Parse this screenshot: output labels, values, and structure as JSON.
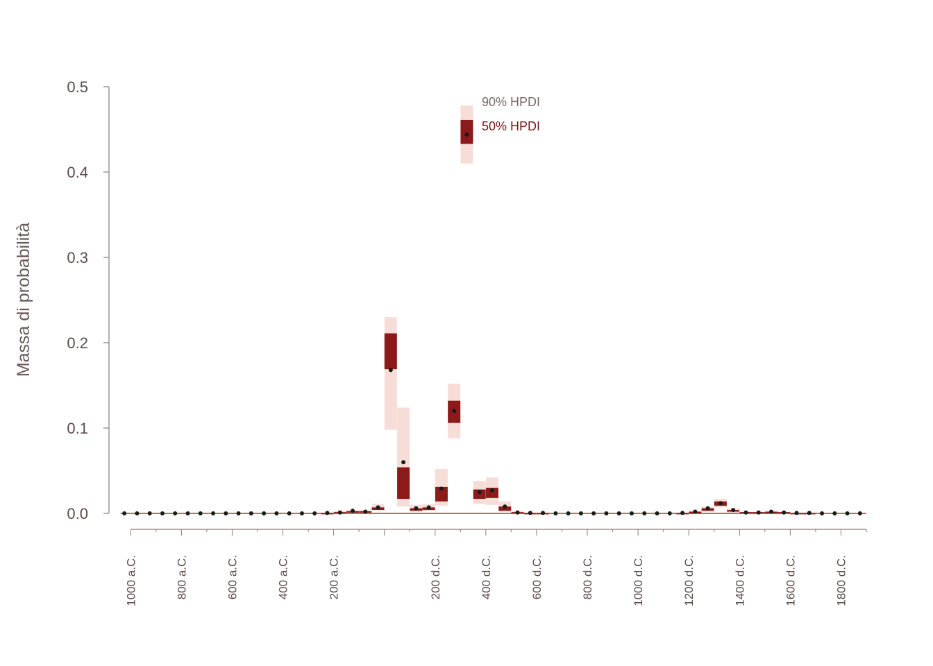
{
  "chart_data": {
    "type": "interval",
    "ylabel": "Massa di probabilità",
    "ylim": [
      0,
      0.5
    ],
    "yticks": [
      "0.0",
      "0.1",
      "0.2",
      "0.3",
      "0.4",
      "0.5"
    ],
    "xlim": [
      -1050,
      1900
    ],
    "xticks": [
      {
        "value": -1000,
        "label": "1000 a.C."
      },
      {
        "value": -800,
        "label": "800 a.C."
      },
      {
        "value": -600,
        "label": "600 a.C."
      },
      {
        "value": -400,
        "label": "400 a.C."
      },
      {
        "value": -200,
        "label": "200 a.C."
      },
      {
        "value": 200,
        "label": "200 d.C."
      },
      {
        "value": 400,
        "label": "400 d.C."
      },
      {
        "value": 600,
        "label": "600 d.C."
      },
      {
        "value": 800,
        "label": "800 d.C."
      },
      {
        "value": 1000,
        "label": "1000 d.C."
      },
      {
        "value": 1200,
        "label": "1200 d.C."
      },
      {
        "value": 1400,
        "label": "1400 d.C."
      },
      {
        "value": 1600,
        "label": "1600 d.C."
      },
      {
        "value": 1800,
        "label": "1800 d.C."
      }
    ],
    "legend": {
      "hpdi90": "90% HPDI",
      "hpdi50": "50% HPDI"
    },
    "colors": {
      "hpdi90": "#f7ddd8",
      "hpdi50": "#8b1a1a",
      "point": "#1a1a1a",
      "axis": "#8a7a78",
      "zero_line": "#8b1a1a"
    },
    "series": [
      {
        "x": -1025,
        "y": 0,
        "lo90": 0,
        "hi90": 0,
        "lo50": 0,
        "hi50": 0
      },
      {
        "x": -975,
        "y": 0,
        "lo90": 0,
        "hi90": 0,
        "lo50": 0,
        "hi50": 0
      },
      {
        "x": -925,
        "y": 0,
        "lo90": 0,
        "hi90": 0,
        "lo50": 0,
        "hi50": 0
      },
      {
        "x": -875,
        "y": 0,
        "lo90": 0,
        "hi90": 0,
        "lo50": 0,
        "hi50": 0
      },
      {
        "x": -825,
        "y": 0,
        "lo90": 0,
        "hi90": 0,
        "lo50": 0,
        "hi50": 0
      },
      {
        "x": -775,
        "y": 0,
        "lo90": 0,
        "hi90": 0,
        "lo50": 0,
        "hi50": 0
      },
      {
        "x": -725,
        "y": 0,
        "lo90": 0,
        "hi90": 0,
        "lo50": 0,
        "hi50": 0
      },
      {
        "x": -675,
        "y": 0,
        "lo90": 0,
        "hi90": 0,
        "lo50": 0,
        "hi50": 0
      },
      {
        "x": -625,
        "y": 0,
        "lo90": 0,
        "hi90": 0,
        "lo50": 0,
        "hi50": 0
      },
      {
        "x": -575,
        "y": 0,
        "lo90": 0,
        "hi90": 0,
        "lo50": 0,
        "hi50": 0
      },
      {
        "x": -525,
        "y": 0,
        "lo90": 0,
        "hi90": 0,
        "lo50": 0,
        "hi50": 0
      },
      {
        "x": -475,
        "y": 0,
        "lo90": 0,
        "hi90": 0,
        "lo50": 0,
        "hi50": 0
      },
      {
        "x": -425,
        "y": 0,
        "lo90": 0,
        "hi90": 0,
        "lo50": 0,
        "hi50": 0
      },
      {
        "x": -375,
        "y": 0,
        "lo90": 0,
        "hi90": 0,
        "lo50": 0,
        "hi50": 0
      },
      {
        "x": -325,
        "y": 0,
        "lo90": 0,
        "hi90": 0,
        "lo50": 0,
        "hi50": 0
      },
      {
        "x": -275,
        "y": 0,
        "lo90": 0,
        "hi90": 0,
        "lo50": 0,
        "hi50": 0
      },
      {
        "x": -225,
        "y": 0.0005,
        "lo90": 0,
        "hi90": 0.001,
        "lo50": 0,
        "hi50": 0.0005
      },
      {
        "x": -175,
        "y": 0.001,
        "lo90": 0,
        "hi90": 0.003,
        "lo50": 0,
        "hi50": 0.0015
      },
      {
        "x": -125,
        "y": 0.003,
        "lo90": 0.0005,
        "hi90": 0.004,
        "lo50": 0.0015,
        "hi50": 0.0025
      },
      {
        "x": -75,
        "y": 0.002,
        "lo90": 0.0005,
        "hi90": 0.004,
        "lo50": 0.0015,
        "hi50": 0.0025
      },
      {
        "x": -25,
        "y": 0.007,
        "lo90": 0.004,
        "hi90": 0.011,
        "lo50": 0.004,
        "hi50": 0.007
      },
      {
        "x": 25,
        "y": 0.168,
        "lo90": 0.098,
        "hi90": 0.23,
        "lo50": 0.169,
        "hi50": 0.211
      },
      {
        "x": 75,
        "y": 0.06,
        "lo90": 0.008,
        "hi90": 0.124,
        "lo50": 0.017,
        "hi50": 0.054
      },
      {
        "x": 125,
        "y": 0.006,
        "lo90": 0.002,
        "hi90": 0.01,
        "lo50": 0.003,
        "hi50": 0.006
      },
      {
        "x": 175,
        "y": 0.007,
        "lo90": 0.003,
        "hi90": 0.011,
        "lo50": 0.004,
        "hi50": 0.007
      },
      {
        "x": 225,
        "y": 0.029,
        "lo90": 0.009,
        "hi90": 0.052,
        "lo50": 0.014,
        "hi50": 0.031
      },
      {
        "x": 275,
        "y": 0.12,
        "lo90": 0.088,
        "hi90": 0.152,
        "lo50": 0.106,
        "hi50": 0.132
      },
      {
        "x": 325,
        "y": 0.444,
        "lo90": 0.41,
        "hi90": 0.478,
        "lo50": 0.433,
        "hi50": 0.461
      },
      {
        "x": 375,
        "y": 0.025,
        "lo90": 0.011,
        "hi90": 0.038,
        "lo50": 0.017,
        "hi50": 0.028
      },
      {
        "x": 425,
        "y": 0.027,
        "lo90": 0.01,
        "hi90": 0.042,
        "lo50": 0.018,
        "hi50": 0.03
      },
      {
        "x": 475,
        "y": 0.008,
        "lo90": 0.002,
        "hi90": 0.014,
        "lo50": 0.003,
        "hi50": 0.008
      },
      {
        "x": 525,
        "y": 0.001,
        "lo90": 0,
        "hi90": 0.003,
        "lo50": 0,
        "hi50": 0.0015
      },
      {
        "x": 575,
        "y": 0.0005,
        "lo90": 0,
        "hi90": 0.001,
        "lo50": 0,
        "hi50": 0.0005
      },
      {
        "x": 625,
        "y": 0.0005,
        "lo90": 0,
        "hi90": 0.001,
        "lo50": 0,
        "hi50": 0.0005
      },
      {
        "x": 675,
        "y": 0,
        "lo90": 0,
        "hi90": 0,
        "lo50": 0,
        "hi50": 0
      },
      {
        "x": 725,
        "y": 0,
        "lo90": 0,
        "hi90": 0,
        "lo50": 0,
        "hi50": 0
      },
      {
        "x": 775,
        "y": 0,
        "lo90": 0,
        "hi90": 0,
        "lo50": 0,
        "hi50": 0
      },
      {
        "x": 825,
        "y": 0,
        "lo90": 0,
        "hi90": 0,
        "lo50": 0,
        "hi50": 0
      },
      {
        "x": 875,
        "y": 0,
        "lo90": 0,
        "hi90": 0,
        "lo50": 0,
        "hi50": 0
      },
      {
        "x": 925,
        "y": 0,
        "lo90": 0,
        "hi90": 0,
        "lo50": 0,
        "hi50": 0
      },
      {
        "x": 975,
        "y": 0,
        "lo90": 0,
        "hi90": 0,
        "lo50": 0,
        "hi50": 0
      },
      {
        "x": 1025,
        "y": 0,
        "lo90": 0,
        "hi90": 0,
        "lo50": 0,
        "hi50": 0
      },
      {
        "x": 1075,
        "y": 0,
        "lo90": 0,
        "hi90": 0,
        "lo50": 0,
        "hi50": 0
      },
      {
        "x": 1125,
        "y": 0,
        "lo90": 0,
        "hi90": 0,
        "lo50": 0,
        "hi50": 0
      },
      {
        "x": 1175,
        "y": 0.0005,
        "lo90": 0,
        "hi90": 0.001,
        "lo50": 0,
        "hi50": 0.0005
      },
      {
        "x": 1225,
        "y": 0.002,
        "lo90": 0.0005,
        "hi90": 0.003,
        "lo50": 0.001,
        "hi50": 0.002
      },
      {
        "x": 1275,
        "y": 0.006,
        "lo90": 0.002,
        "hi90": 0.008,
        "lo50": 0.003,
        "hi50": 0.006
      },
      {
        "x": 1325,
        "y": 0.012,
        "lo90": 0.007,
        "hi90": 0.017,
        "lo50": 0.009,
        "hi50": 0.014
      },
      {
        "x": 1375,
        "y": 0.004,
        "lo90": 0.001,
        "hi90": 0.006,
        "lo50": 0.002,
        "hi50": 0.004
      },
      {
        "x": 1425,
        "y": 0.001,
        "lo90": 0,
        "hi90": 0.002,
        "lo50": 0.0005,
        "hi50": 0.0015
      },
      {
        "x": 1475,
        "y": 0.001,
        "lo90": 0,
        "hi90": 0.002,
        "lo50": 0.0005,
        "hi50": 0.0015
      },
      {
        "x": 1525,
        "y": 0.002,
        "lo90": 0.0005,
        "hi90": 0.003,
        "lo50": 0.001,
        "hi50": 0.002
      },
      {
        "x": 1575,
        "y": 0.001,
        "lo90": 0,
        "hi90": 0.002,
        "lo50": 0.0005,
        "hi50": 0.0015
      },
      {
        "x": 1625,
        "y": 0.0005,
        "lo90": 0,
        "hi90": 0.001,
        "lo50": 0,
        "hi50": 0.0005
      },
      {
        "x": 1675,
        "y": 0.0005,
        "lo90": 0,
        "hi90": 0.001,
        "lo50": 0,
        "hi50": 0.0005
      },
      {
        "x": 1725,
        "y": 0,
        "lo90": 0,
        "hi90": 0,
        "lo50": 0,
        "hi50": 0
      },
      {
        "x": 1775,
        "y": 0,
        "lo90": 0,
        "hi90": 0,
        "lo50": 0,
        "hi50": 0
      },
      {
        "x": 1825,
        "y": 0,
        "lo90": 0,
        "hi90": 0,
        "lo50": 0,
        "hi50": 0
      },
      {
        "x": 1875,
        "y": 0,
        "lo90": 0,
        "hi90": 0,
        "lo50": 0,
        "hi50": 0
      }
    ]
  }
}
